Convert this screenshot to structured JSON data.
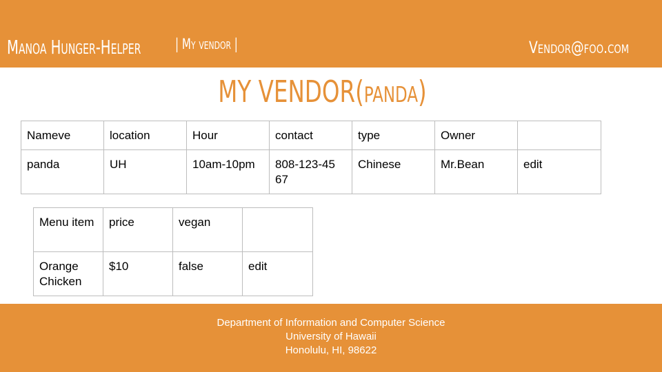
{
  "header": {
    "brand": "Manoa Hunger-Helper",
    "nav_item": "| My vendor |",
    "user_email": "Vendor@foo.com"
  },
  "page_title": "MY VENDOR(panda)",
  "vendor_table": {
    "headers": [
      "Nameve",
      "location",
      "Hour",
      "contact",
      "type",
      "Owner",
      ""
    ],
    "row": {
      "name": "panda",
      "location": "UH",
      "hour": "10am-10pm",
      "contact": "808-123-45 67",
      "type": "Chinese",
      "owner": "Mr.Bean",
      "action": "edit"
    }
  },
  "menu_table": {
    "headers": [
      "Menu item",
      "price",
      "vegan",
      ""
    ],
    "row": {
      "item": "Orange Chicken",
      "price": "$10",
      "vegan": "false",
      "action": "edit"
    }
  },
  "footer": {
    "line1": "Department of Information and Computer Science",
    "line2": "University of Hawaii",
    "line3": "Honolulu, HI, 98622"
  },
  "colors": {
    "accent": "#e69138",
    "border": "#bdbdbd"
  }
}
